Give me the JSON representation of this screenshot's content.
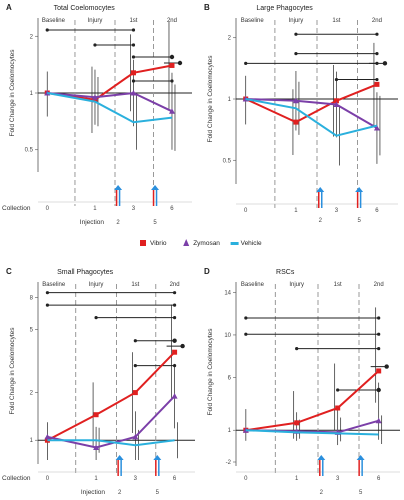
{
  "figure": {
    "y_label": "Fold Change in Coelomocytes",
    "x_caption": "Collection",
    "injection_label": "Injection",
    "phase_labels": [
      "Baseline",
      "Injury",
      "1st",
      "2nd"
    ],
    "injection_ticks": [
      "2",
      "5"
    ],
    "collection_ticks": [
      "0",
      "1",
      "3",
      "6"
    ],
    "series_colors": {
      "Vibrio": "#e02020",
      "Zymosan": "#7b3fa8",
      "Vehicle": "#2ab0dd"
    },
    "legend": [
      {
        "name": "Vibrio",
        "color": "#e02020",
        "marker": "square"
      },
      {
        "name": "Zymosan",
        "color": "#7b3fa8",
        "marker": "triangle"
      },
      {
        "name": "Vehicle",
        "color": "#2ab0dd",
        "marker": "line"
      }
    ],
    "arrow_colors": {
      "red": "#e02020",
      "blue": "#2a8fdd"
    }
  },
  "chart_data": [
    {
      "letter": "A",
      "title": "Total Coelomocytes",
      "type": "line",
      "y_scale": "log",
      "ylim": [
        0.4,
        2.5
      ],
      "y_ticks": [
        "0.5",
        "1",
        "2"
      ],
      "x": [
        0,
        1,
        3,
        6
      ],
      "series": [
        {
          "name": "Vibrio",
          "values": [
            1.0,
            0.92,
            1.28,
            1.4
          ]
        },
        {
          "name": "Zymosan",
          "values": [
            1.0,
            0.95,
            1.0,
            0.8
          ]
        },
        {
          "name": "Vehicle",
          "values": [
            1.0,
            0.9,
            0.7,
            0.74
          ]
        }
      ]
    },
    {
      "letter": "B",
      "title": "Large Phagocytes",
      "type": "line",
      "y_scale": "log",
      "ylim": [
        0.4,
        2.5
      ],
      "y_ticks": [
        "0.5",
        "1",
        "2"
      ],
      "x": [
        0,
        1,
        3,
        6
      ],
      "series": [
        {
          "name": "Vibrio",
          "values": [
            1.0,
            0.77,
            0.98,
            1.18
          ]
        },
        {
          "name": "Zymosan",
          "values": [
            1.0,
            0.98,
            0.94,
            0.72
          ]
        },
        {
          "name": "Vehicle",
          "values": [
            1.0,
            0.9,
            0.66,
            0.74
          ]
        }
      ]
    },
    {
      "letter": "C",
      "title": "Small Phagocytes",
      "type": "line",
      "y_scale": "log",
      "ylim": [
        0.75,
        10
      ],
      "y_ticks": [
        "1",
        "2",
        "5",
        "8"
      ],
      "x": [
        0,
        1,
        3,
        6
      ],
      "series": [
        {
          "name": "Vibrio",
          "values": [
            1.0,
            1.45,
            2.0,
            3.6
          ]
        },
        {
          "name": "Zymosan",
          "values": [
            1.05,
            0.9,
            1.05,
            1.9
          ]
        },
        {
          "name": "Vehicle",
          "values": [
            1.0,
            1.0,
            0.93,
            1.0
          ]
        }
      ]
    },
    {
      "letter": "D",
      "title": "RSCs",
      "type": "line",
      "y_scale": "linear",
      "ylim": [
        -2,
        15
      ],
      "y_ticks": [
        "-2",
        "1",
        "6",
        "10",
        "14"
      ],
      "x": [
        0,
        1,
        3,
        6
      ],
      "series": [
        {
          "name": "Vibrio",
          "values": [
            1.0,
            1.7,
            3.1,
            6.6
          ]
        },
        {
          "name": "Zymosan",
          "values": [
            1.0,
            0.9,
            0.8,
            1.9
          ]
        },
        {
          "name": "Vehicle",
          "values": [
            1.0,
            0.8,
            0.7,
            0.6
          ]
        }
      ]
    }
  ]
}
